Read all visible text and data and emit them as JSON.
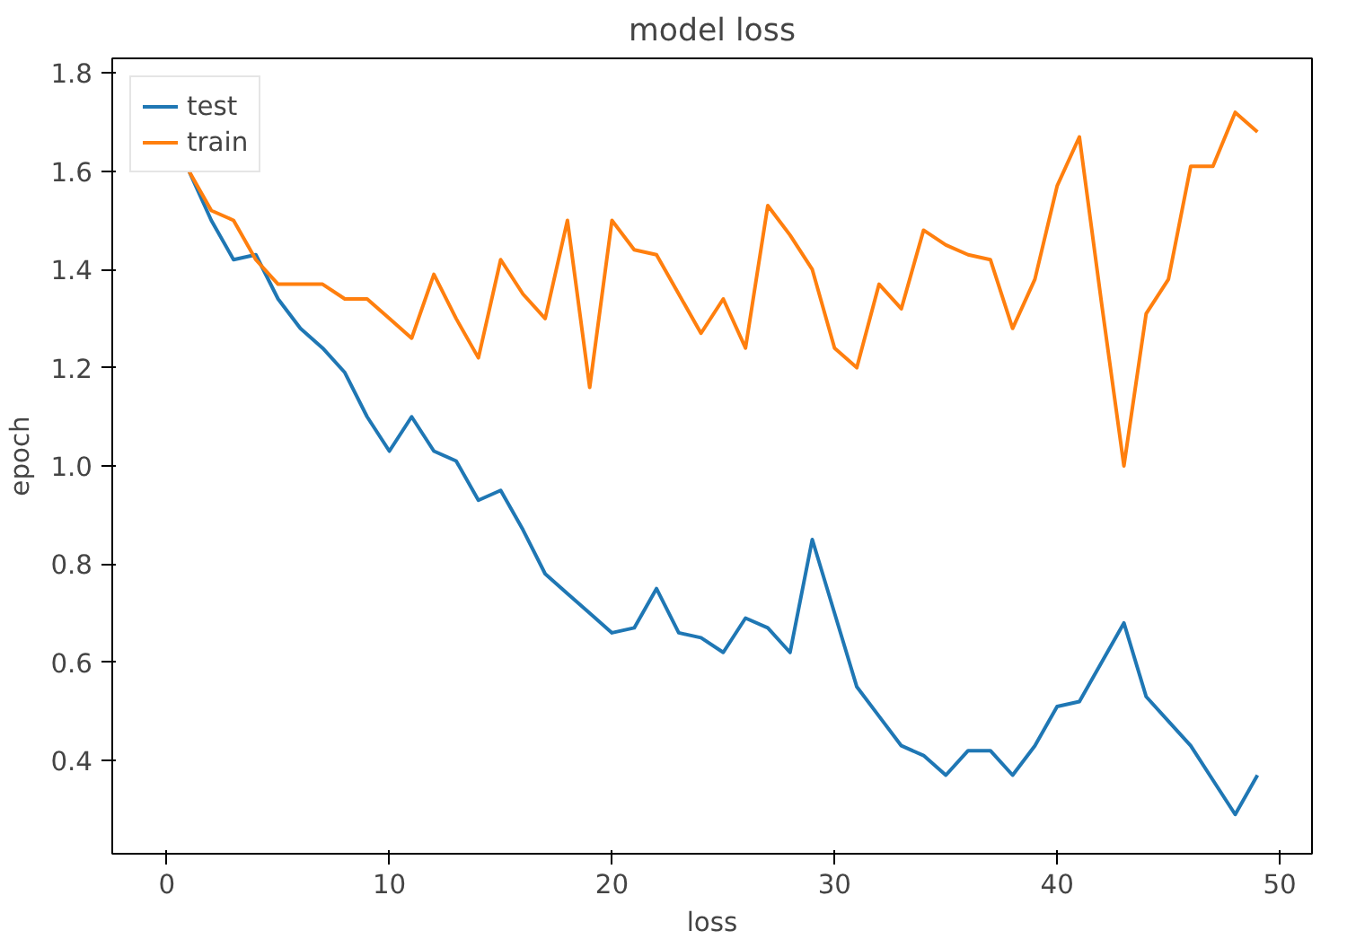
{
  "chart_data": {
    "type": "line",
    "title": "model loss",
    "xlabel": "loss",
    "ylabel": "epoch",
    "x": [
      1,
      2,
      3,
      4,
      5,
      6,
      7,
      8,
      9,
      10,
      11,
      12,
      13,
      14,
      15,
      16,
      17,
      18,
      19,
      20,
      21,
      22,
      23,
      24,
      25,
      26,
      27,
      28,
      29,
      30,
      31,
      32,
      33,
      34,
      35,
      36,
      37,
      38,
      39,
      40,
      41,
      42,
      43,
      44,
      45,
      46,
      47,
      48,
      49
    ],
    "series": [
      {
        "name": "test",
        "color": "#1f77b4",
        "values": [
          1.6,
          1.5,
          1.42,
          1.43,
          1.34,
          1.28,
          1.24,
          1.19,
          1.1,
          1.03,
          1.1,
          1.03,
          1.01,
          0.93,
          0.95,
          0.87,
          0.78,
          0.74,
          0.7,
          0.66,
          0.67,
          0.75,
          0.66,
          0.65,
          0.62,
          0.69,
          0.67,
          0.62,
          0.85,
          0.7,
          0.55,
          0.49,
          0.43,
          0.41,
          0.37,
          0.42,
          0.42,
          0.37,
          0.43,
          0.51,
          0.52,
          0.6,
          0.68,
          0.53,
          0.48,
          0.43,
          0.36,
          0.29,
          0.37
        ]
      },
      {
        "name": "train",
        "color": "#ff7f0e",
        "values": [
          1.6,
          1.52,
          1.5,
          1.42,
          1.37,
          1.37,
          1.37,
          1.34,
          1.34,
          1.3,
          1.26,
          1.39,
          1.3,
          1.22,
          1.42,
          1.35,
          1.3,
          1.5,
          1.16,
          1.5,
          1.44,
          1.43,
          1.35,
          1.27,
          1.34,
          1.24,
          1.53,
          1.47,
          1.4,
          1.24,
          1.2,
          1.37,
          1.32,
          1.48,
          1.45,
          1.43,
          1.42,
          1.28,
          1.38,
          1.57,
          1.67,
          1.33,
          1.0,
          1.31,
          1.38,
          1.61,
          1.61,
          1.72,
          1.68
        ]
      }
    ],
    "xlim": [
      -2.45,
      51.45
    ],
    "ylim": [
      0.21,
      1.83
    ],
    "xticks": [
      0,
      10,
      20,
      30,
      40,
      50
    ],
    "yticks": [
      {
        "value": 0.4,
        "label": "0.4"
      },
      {
        "value": 0.6,
        "label": "0.6"
      },
      {
        "value": 0.8,
        "label": "0.8"
      },
      {
        "value": 1.0,
        "label": "1.0"
      },
      {
        "value": 1.2,
        "label": "1.2"
      },
      {
        "value": 1.4,
        "label": "1.4"
      },
      {
        "value": 1.6,
        "label": "1.6"
      },
      {
        "value": 1.8,
        "label": "1.8"
      }
    ],
    "grid": false,
    "legend": "top left",
    "line_style": "solid"
  }
}
